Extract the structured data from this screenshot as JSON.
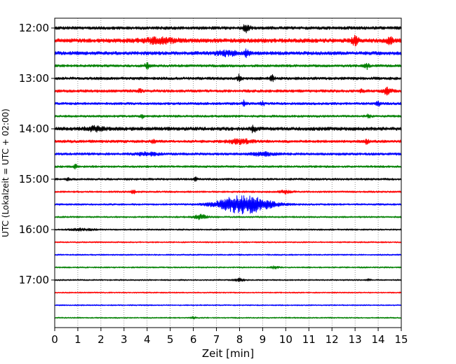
{
  "chart_data": {
    "type": "line",
    "subtype": "helicorder",
    "title": "",
    "xlabel": "Zeit  [min]",
    "ylabel": "UTC (Lokalzeit = UTC + 02:00)",
    "xlim": [
      0,
      15
    ],
    "x_ticks": [
      "0",
      "1",
      "2",
      "3",
      "4",
      "5",
      "6",
      "7",
      "8",
      "9",
      "10",
      "11",
      "12",
      "13",
      "14",
      "15"
    ],
    "y_tick_labels": [
      "12:00",
      "13:00",
      "14:00",
      "15:00",
      "16:00",
      "17:00"
    ],
    "rows_per_hour": 4,
    "row_start_times": [
      "12:00",
      "12:15",
      "12:30",
      "12:45",
      "13:00",
      "13:15",
      "13:30",
      "13:45",
      "14:00",
      "14:15",
      "14:30",
      "14:45",
      "15:00",
      "15:15",
      "15:30",
      "15:45",
      "16:00",
      "16:15",
      "16:30",
      "16:45",
      "17:00",
      "17:15",
      "17:30",
      "17:45"
    ],
    "trace_colors": [
      "#000000",
      "#ff0000",
      "#0000ff",
      "#008000"
    ],
    "grid": "vertical dotted at each minute",
    "series": [
      {
        "amplitude": 2.2,
        "events": [
          {
            "t": 8.3,
            "amp": 6,
            "dur": 0.15
          }
        ]
      },
      {
        "amplitude": 3.0,
        "events": [
          {
            "t": 4.5,
            "amp": 3,
            "dur": 0.8
          },
          {
            "t": 13.0,
            "amp": 5,
            "dur": 0.15
          },
          {
            "t": 14.5,
            "amp": 4,
            "dur": 0.15
          }
        ]
      },
      {
        "amplitude": 2.5,
        "events": [
          {
            "t": 7.5,
            "amp": 3,
            "dur": 0.5
          },
          {
            "t": 8.3,
            "amp": 4,
            "dur": 0.12
          }
        ]
      },
      {
        "amplitude": 1.8,
        "events": [
          {
            "t": 4.0,
            "amp": 4,
            "dur": 0.1
          },
          {
            "t": 13.5,
            "amp": 4,
            "dur": 0.1
          }
        ]
      },
      {
        "amplitude": 2.0,
        "events": [
          {
            "t": 8.0,
            "amp": 5,
            "dur": 0.1
          },
          {
            "t": 9.4,
            "amp": 4,
            "dur": 0.1
          }
        ]
      },
      {
        "amplitude": 2.0,
        "events": [
          {
            "t": 3.7,
            "amp": 3,
            "dur": 0.08
          },
          {
            "t": 13.3,
            "amp": 3,
            "dur": 0.08
          },
          {
            "t": 14.4,
            "amp": 4,
            "dur": 0.2
          }
        ]
      },
      {
        "amplitude": 1.8,
        "events": [
          {
            "t": 8.2,
            "amp": 4,
            "dur": 0.08
          },
          {
            "t": 9.0,
            "amp": 3,
            "dur": 0.08
          },
          {
            "t": 14.0,
            "amp": 3,
            "dur": 0.08
          }
        ]
      },
      {
        "amplitude": 1.6,
        "events": [
          {
            "t": 3.8,
            "amp": 3,
            "dur": 0.08
          },
          {
            "t": 13.6,
            "amp": 3,
            "dur": 0.08
          }
        ]
      },
      {
        "amplitude": 2.5,
        "events": [
          {
            "t": 1.7,
            "amp": 3,
            "dur": 0.4
          },
          {
            "t": 8.6,
            "amp": 5,
            "dur": 0.1
          }
        ]
      },
      {
        "amplitude": 2.0,
        "events": [
          {
            "t": 4.3,
            "amp": 4,
            "dur": 0.08
          },
          {
            "t": 8.0,
            "amp": 3,
            "dur": 0.5
          },
          {
            "t": 13.5,
            "amp": 3,
            "dur": 0.08
          }
        ]
      },
      {
        "amplitude": 1.8,
        "events": [
          {
            "t": 4.0,
            "amp": 2,
            "dur": 0.5
          },
          {
            "t": 9.0,
            "amp": 2,
            "dur": 0.5
          }
        ]
      },
      {
        "amplitude": 1.5,
        "events": [
          {
            "t": 0.9,
            "amp": 3,
            "dur": 0.08
          }
        ]
      },
      {
        "amplitude": 1.5,
        "events": [
          {
            "t": 6.1,
            "amp": 4,
            "dur": 0.08
          },
          {
            "t": 0.6,
            "amp": 2,
            "dur": 0.08
          }
        ]
      },
      {
        "amplitude": 1.3,
        "events": [
          {
            "t": 3.4,
            "amp": 3,
            "dur": 0.08
          },
          {
            "t": 10.0,
            "amp": 2,
            "dur": 0.3
          }
        ]
      },
      {
        "amplitude": 1.3,
        "events": [
          {
            "t": 8.2,
            "amp": 13,
            "dur": 1.1
          }
        ]
      },
      {
        "amplitude": 1.2,
        "events": [
          {
            "t": 6.3,
            "amp": 3,
            "dur": 0.3
          }
        ]
      },
      {
        "amplitude": 1.1,
        "events": [
          {
            "t": 1.2,
            "amp": 1.5,
            "dur": 0.5
          }
        ]
      },
      {
        "amplitude": 1.0,
        "events": []
      },
      {
        "amplitude": 1.0,
        "events": []
      },
      {
        "amplitude": 1.0,
        "events": [
          {
            "t": 9.5,
            "amp": 1.5,
            "dur": 0.2
          }
        ]
      },
      {
        "amplitude": 1.0,
        "events": [
          {
            "t": 8.0,
            "amp": 2,
            "dur": 0.2
          },
          {
            "t": 13.6,
            "amp": 1.5,
            "dur": 0.1
          }
        ]
      },
      {
        "amplitude": 0.9,
        "events": []
      },
      {
        "amplitude": 0.9,
        "events": []
      },
      {
        "amplitude": 0.9,
        "events": [
          {
            "t": 6.0,
            "amp": 1.5,
            "dur": 0.1
          }
        ]
      }
    ]
  }
}
